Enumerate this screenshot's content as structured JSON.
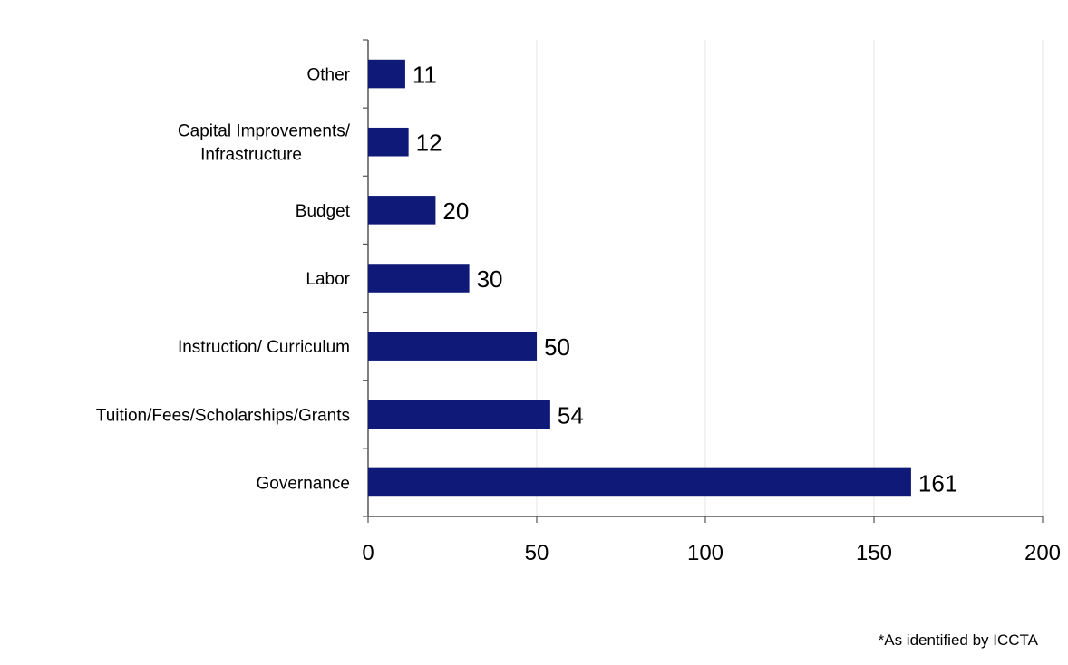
{
  "chart_data": {
    "type": "bar",
    "orientation": "horizontal",
    "categories": [
      "Other",
      "Capital Improvements/ Infrastructure",
      "Budget",
      "Labor",
      "Instruction/ Curriculum",
      "Tuition/Fees/Scholarships/Grants",
      "Governance"
    ],
    "category_lines": [
      [
        "Other"
      ],
      [
        "Capital Improvements/",
        "Infrastructure"
      ],
      [
        "Budget"
      ],
      [
        "Labor"
      ],
      [
        "Instruction/ Curriculum"
      ],
      [
        "Tuition/Fees/Scholarships/Grants"
      ],
      [
        "Governance"
      ]
    ],
    "values": [
      11,
      12,
      20,
      30,
      50,
      54,
      161
    ],
    "data_labels": [
      "11",
      "12",
      "20",
      "30",
      "50",
      "54",
      "161"
    ],
    "xlim": [
      0,
      200
    ],
    "x_ticks": [
      0,
      50,
      100,
      150,
      200
    ],
    "x_tick_labels": [
      "0",
      "50",
      "100",
      "150",
      "200"
    ],
    "grid": "vertical-major",
    "legend": "none",
    "colors": {
      "bar": "#0f1a78",
      "grid": "#e6e6e6",
      "axis": "#555555"
    }
  },
  "footnote": "*As identified by ICCTA"
}
